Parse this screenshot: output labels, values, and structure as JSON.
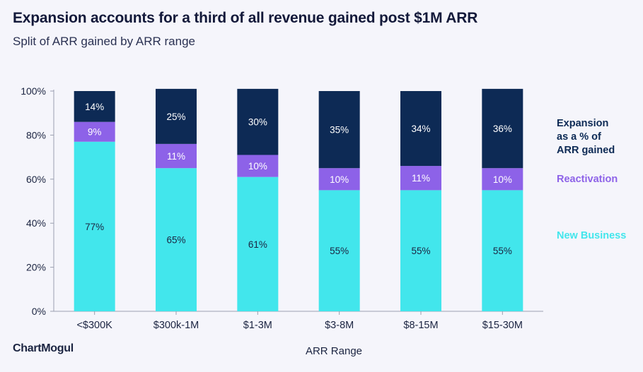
{
  "header": {
    "title": "Expansion accounts for a third of all revenue gained post $1M ARR",
    "subtitle": "Split of ARR gained by ARR range"
  },
  "brand": {
    "logo_text": "ChartMogul"
  },
  "colors": {
    "new_business": "#42e6ec",
    "reactivation": "#8d62e8",
    "expansion": "#0d2a55",
    "background": "#f5f5fb",
    "axis": "#9a9fb0",
    "grid": "#dfe1ea"
  },
  "chart_data": {
    "type": "bar",
    "stacked": true,
    "title": "Expansion accounts for a third of all revenue gained post $1M ARR",
    "subtitle": "Split of ARR gained by ARR range",
    "xlabel": "ARR Range",
    "ylabel": "",
    "ylim": [
      0,
      100
    ],
    "yticks": [
      "0%",
      "20%",
      "40%",
      "60%",
      "80%",
      "100%"
    ],
    "grid": false,
    "legend_placement": "right",
    "categories": [
      "<$300K",
      "$300k-1M",
      "$1-3M",
      "$3-8M",
      "$8-15M",
      "$15-30M"
    ],
    "series": [
      {
        "name": "New Business",
        "values": [
          77,
          65,
          61,
          55,
          55,
          55
        ],
        "labels": [
          "77%",
          "65%",
          "61%",
          "55%",
          "55%",
          "55%"
        ]
      },
      {
        "name": "Reactivation",
        "values": [
          9,
          11,
          10,
          10,
          11,
          10
        ],
        "labels": [
          "9%",
          "11%",
          "10%",
          "10%",
          "11%",
          "10%"
        ]
      },
      {
        "name": "Expansion as a % of ARR gained",
        "values": [
          14,
          25,
          30,
          35,
          34,
          36
        ],
        "labels": [
          "14%",
          "25%",
          "30%",
          "35%",
          "34%",
          "36%"
        ]
      }
    ]
  },
  "legend": {
    "expansion": "Expansion\nas a % of\nARR gained",
    "reactivation": "Reactivation",
    "new_business": "New Business"
  }
}
